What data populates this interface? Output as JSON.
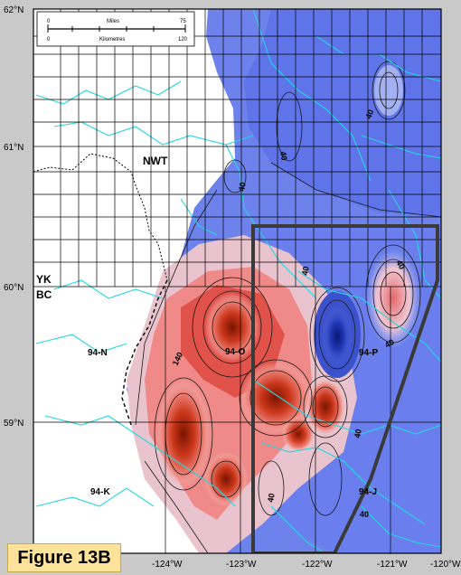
{
  "figure_label": "Figure 13B",
  "scale_bar": {
    "top_unit": "Miles",
    "top_start": "0",
    "top_end": "75",
    "bottom_unit": "Kilometres",
    "bottom_start": "0",
    "bottom_end": "120"
  },
  "lat_labels": [
    "62°N",
    "61°N",
    "60°N",
    "59°N"
  ],
  "lon_labels": [
    "-124°W",
    "-123°W",
    "-122°W",
    "-121°W",
    "-120°W"
  ],
  "region_labels": {
    "nwt": "NWT",
    "yk": "YK",
    "bc": "BC",
    "sheet_94n": "94-N",
    "sheet_94o": "94-O",
    "sheet_94p": "94-P",
    "sheet_94k": "94-K",
    "sheet_94j": "94-J"
  },
  "contour_labels": [
    "40",
    "40",
    "40",
    "40",
    "40",
    "40",
    "40",
    "40",
    "140",
    "40"
  ],
  "colors": {
    "high": "#b22a0a",
    "mid_high": "#e8685a",
    "low": "#5a6ee8",
    "very_low": "#1d2fa8",
    "rivers": "#25d7e0",
    "box": "#3a3a3a"
  }
}
